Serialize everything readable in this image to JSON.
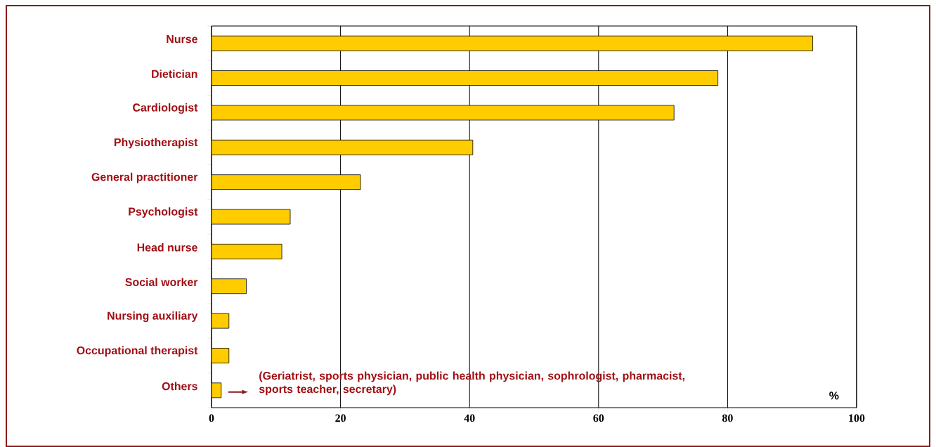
{
  "chart_data": {
    "type": "bar",
    "orientation": "horizontal",
    "categories": [
      "Nurse",
      "Dietician",
      "Cardiologist",
      "Physiotherapist",
      "General practitioner",
      "Psychologist",
      "Head nurse",
      "Social worker",
      "Nursing auxiliary",
      "Occupational therapist",
      "Others"
    ],
    "values": [
      93.2,
      78.5,
      71.7,
      40.5,
      23.1,
      12.2,
      10.9,
      5.4,
      2.7,
      2.7,
      1.5
    ],
    "color": "#ffcc00",
    "xlim": [
      0,
      100
    ],
    "xticks": [
      0,
      20,
      40,
      60,
      80,
      100
    ],
    "grid": "x",
    "xlabel": "%",
    "annotations": [
      "(Geriatrist, sports physician, public health physician, sophrologist, pharmacist, sports teacher, secretary)"
    ]
  }
}
